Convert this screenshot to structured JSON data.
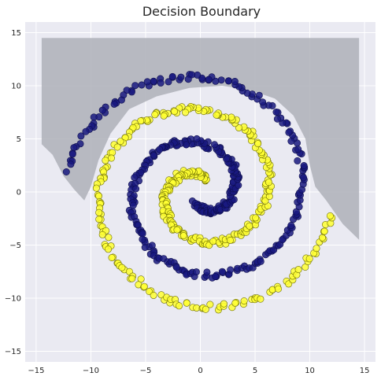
{
  "chart_data": {
    "type": "scatter",
    "title": "Decision Boundary",
    "xlabel": "",
    "ylabel": "",
    "xlim": [
      -16,
      16
    ],
    "ylim": [
      -16,
      16
    ],
    "xticks": [
      -15,
      -10,
      -5,
      0,
      5,
      10,
      15
    ],
    "yticks": [
      -15,
      -10,
      -5,
      0,
      5,
      10,
      15
    ],
    "grid": true,
    "legend": "none",
    "background_color": "#eaeaf2",
    "region_color": "#aeb0b8",
    "decision_region": [
      [
        -14.5,
        14.5
      ],
      [
        14.5,
        14.5
      ],
      [
        14.5,
        -4.5
      ],
      [
        13.0,
        -3.0
      ],
      [
        11.5,
        -0.8
      ],
      [
        10.5,
        0.5
      ],
      [
        10.0,
        2.5
      ],
      [
        9.6,
        5.0
      ],
      [
        8.5,
        7.2
      ],
      [
        6.8,
        8.8
      ],
      [
        4.5,
        9.6
      ],
      [
        2.0,
        10.0
      ],
      [
        -1.0,
        9.8
      ],
      [
        -4.0,
        9.0
      ],
      [
        -6.5,
        7.8
      ],
      [
        -8.2,
        5.5
      ],
      [
        -9.3,
        3.0
      ],
      [
        -10.0,
        0.5
      ],
      [
        -10.6,
        -0.8
      ],
      [
        -11.5,
        0.2
      ],
      [
        -12.5,
        1.5
      ],
      [
        -13.5,
        3.5
      ],
      [
        -14.5,
        4.5
      ]
    ],
    "series": [
      {
        "color": "#1a1a80",
        "edge_color": "#0d0d4d",
        "spiral": {
          "phase": 3.14159,
          "turns_start": 1.2,
          "turns_end": 12.4,
          "scale": 0.985
        }
      },
      {
        "color": "#ffff33",
        "edge_color": "#6b6b00",
        "spiral": {
          "phase": 0,
          "turns_start": 1.2,
          "turns_end": 12.4,
          "scale": 0.985
        }
      }
    ]
  }
}
